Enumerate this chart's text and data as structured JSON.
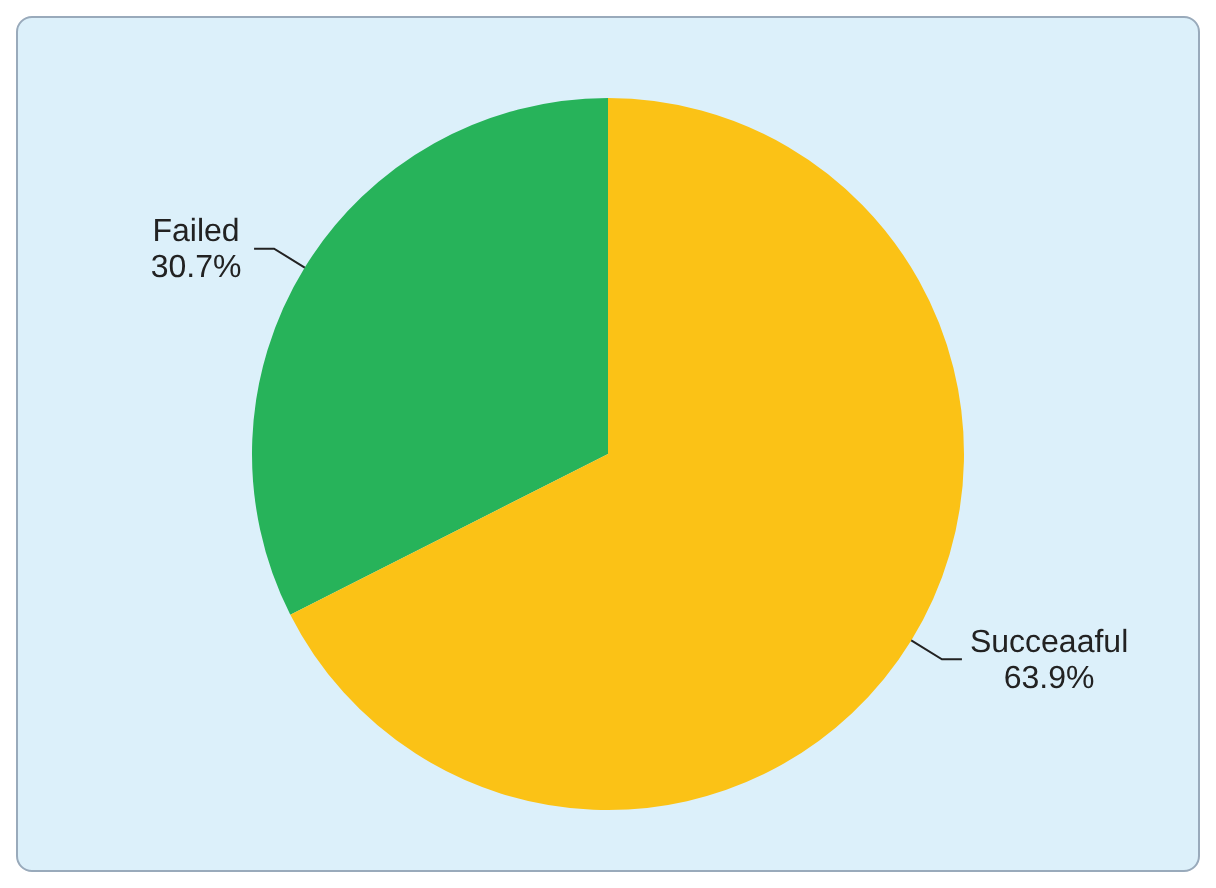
{
  "chart_data": {
    "type": "pie",
    "categories": [
      "Failed",
      "Succeaaful"
    ],
    "values": [
      30.7,
      63.9
    ],
    "colors": [
      "#27b35a",
      "#fbc216"
    ],
    "value_labels": [
      "30.7%",
      "63.9%"
    ],
    "legend": false
  }
}
